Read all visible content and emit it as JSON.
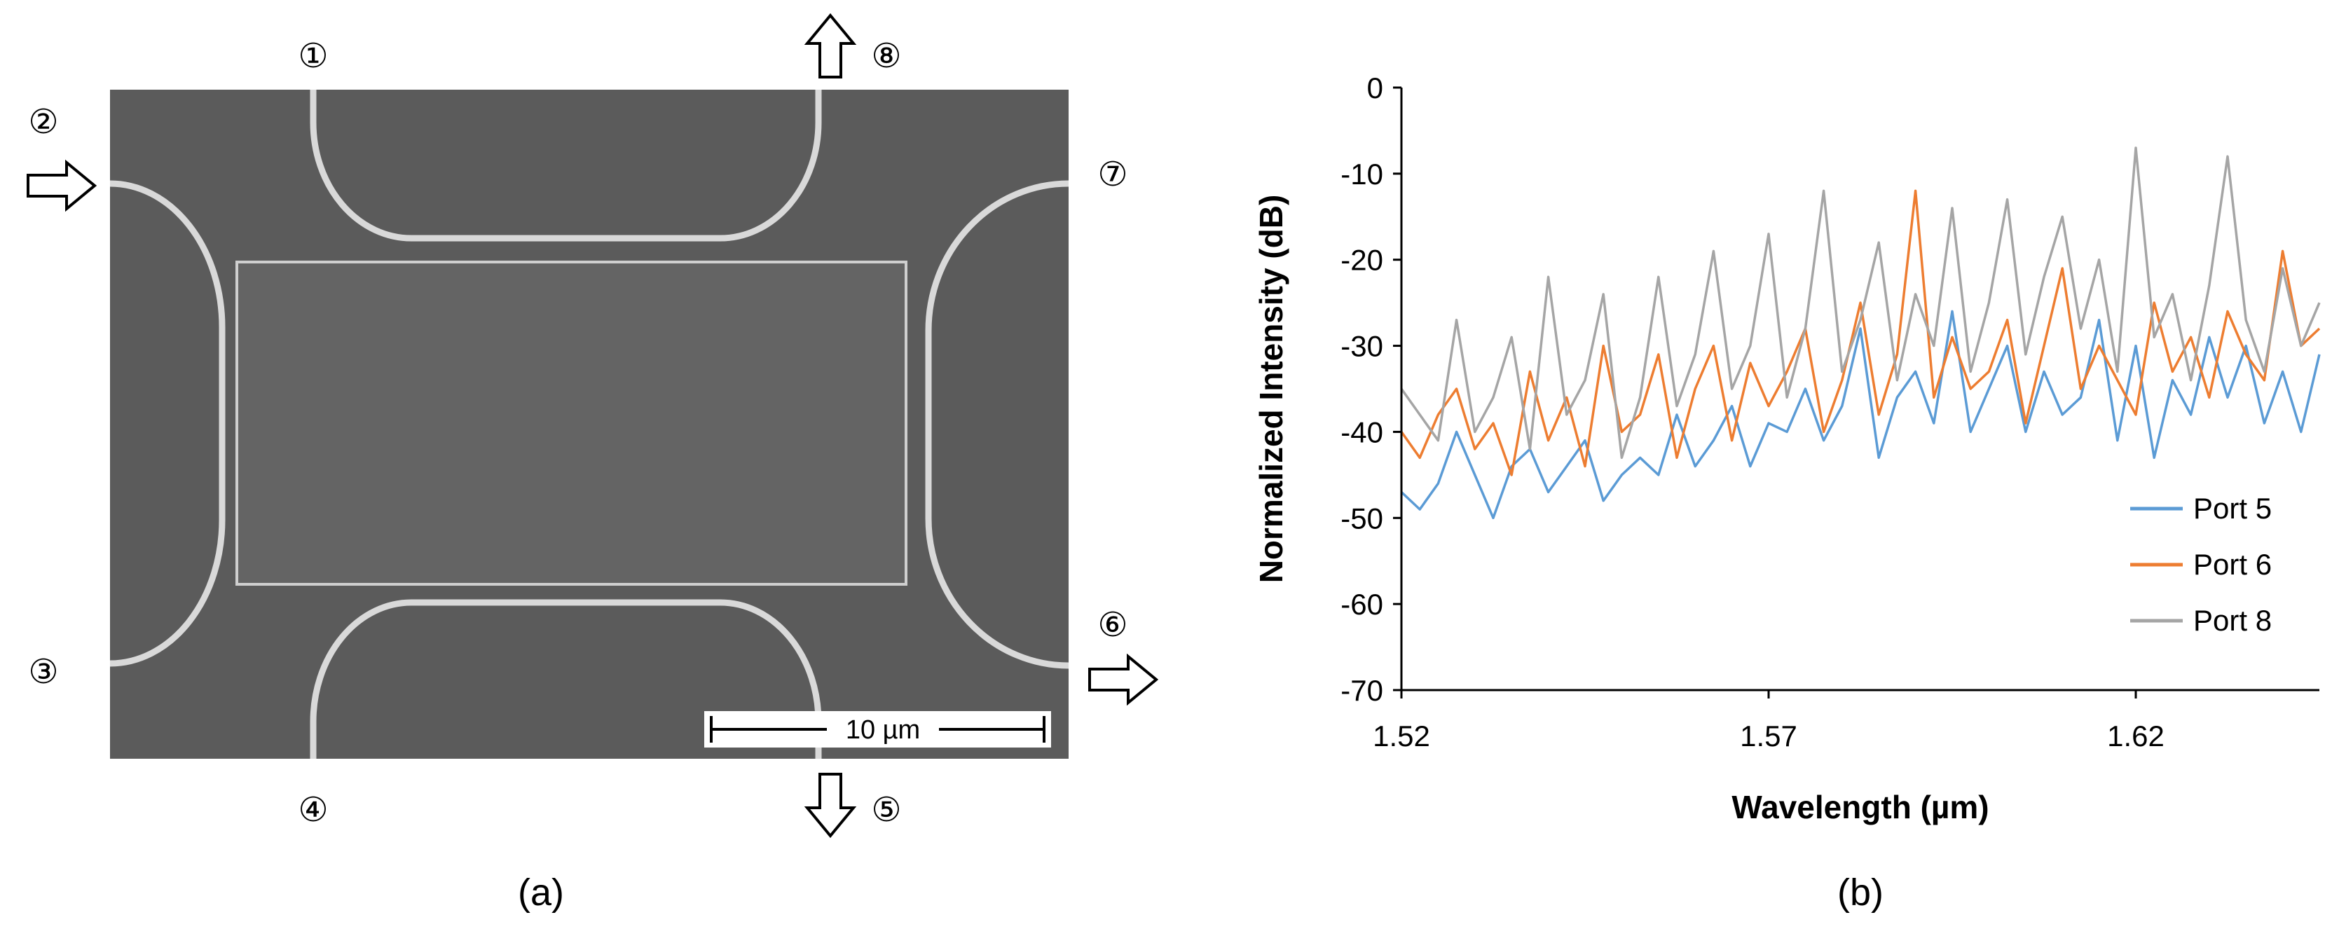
{
  "panel_a": {
    "caption": "(a)",
    "scale_bar_label": "10 µm",
    "ports": [
      {
        "label": "①",
        "arrow": "none"
      },
      {
        "label": "②",
        "arrow": "in-right"
      },
      {
        "label": "③",
        "arrow": "none"
      },
      {
        "label": "④",
        "arrow": "none"
      },
      {
        "label": "⑤",
        "arrow": "out-down"
      },
      {
        "label": "⑥",
        "arrow": "out-right"
      },
      {
        "label": "⑦",
        "arrow": "none"
      },
      {
        "label": "⑧",
        "arrow": "out-up"
      }
    ],
    "colors": {
      "background": "#5b5b5b",
      "waveguide": "#d9d9d9"
    }
  },
  "panel_b": {
    "caption": "(b)"
  },
  "chart_data": {
    "type": "line",
    "title": "",
    "xlabel": "Wavelength (µm)",
    "ylabel": "Normalized Intensity (dB)",
    "xlim": [
      1.52,
      1.645
    ],
    "ylim": [
      -70,
      0
    ],
    "xticks": [
      "1.52",
      "1.57",
      "1.62"
    ],
    "xtick_values": [
      1.52,
      1.57,
      1.62
    ],
    "yticks": [
      "0",
      "-10",
      "-20",
      "-30",
      "-40",
      "-50",
      "-60",
      "-70"
    ],
    "ytick_values": [
      0,
      -10,
      -20,
      -30,
      -40,
      -50,
      -60,
      -70
    ],
    "grid": false,
    "legend_position": "bottom-right",
    "series": [
      {
        "name": "Port 5",
        "color": "#5b9bd5",
        "x": [
          1.52,
          1.5225,
          1.525,
          1.5275,
          1.53,
          1.5325,
          1.535,
          1.5375,
          1.54,
          1.5425,
          1.545,
          1.5475,
          1.55,
          1.5525,
          1.555,
          1.5575,
          1.56,
          1.5625,
          1.565,
          1.5675,
          1.57,
          1.5725,
          1.575,
          1.5775,
          1.58,
          1.5825,
          1.585,
          1.5875,
          1.59,
          1.5925,
          1.595,
          1.5975,
          1.6,
          1.6025,
          1.605,
          1.6075,
          1.61,
          1.6125,
          1.615,
          1.6175,
          1.62,
          1.6225,
          1.625,
          1.6275,
          1.63,
          1.6325,
          1.635,
          1.6375,
          1.64,
          1.6425,
          1.645
        ],
        "y": [
          -47,
          -49,
          -46,
          -40,
          -45,
          -50,
          -44,
          -42,
          -47,
          -44,
          -41,
          -48,
          -45,
          -43,
          -45,
          -38,
          -44,
          -41,
          -37,
          -44,
          -39,
          -40,
          -35,
          -41,
          -37,
          -28,
          -43,
          -36,
          -33,
          -39,
          -26,
          -40,
          -35,
          -30,
          -40,
          -33,
          -38,
          -36,
          -27,
          -41,
          -30,
          -43,
          -34,
          -38,
          -29,
          -36,
          -30,
          -39,
          -33,
          -40,
          -31
        ]
      },
      {
        "name": "Port 6",
        "color": "#ed7d31",
        "x": [
          1.52,
          1.5225,
          1.525,
          1.5275,
          1.53,
          1.5325,
          1.535,
          1.5375,
          1.54,
          1.5425,
          1.545,
          1.5475,
          1.55,
          1.5525,
          1.555,
          1.5575,
          1.56,
          1.5625,
          1.565,
          1.5675,
          1.57,
          1.5725,
          1.575,
          1.5775,
          1.58,
          1.5825,
          1.585,
          1.5875,
          1.59,
          1.5925,
          1.595,
          1.5975,
          1.6,
          1.6025,
          1.605,
          1.6075,
          1.61,
          1.6125,
          1.615,
          1.6175,
          1.62,
          1.6225,
          1.625,
          1.6275,
          1.63,
          1.6325,
          1.635,
          1.6375,
          1.64,
          1.6425,
          1.645
        ],
        "y": [
          -40,
          -43,
          -38,
          -35,
          -42,
          -39,
          -45,
          -33,
          -41,
          -36,
          -44,
          -30,
          -40,
          -38,
          -31,
          -43,
          -35,
          -30,
          -41,
          -32,
          -37,
          -33,
          -28,
          -40,
          -34,
          -25,
          -38,
          -31,
          -12,
          -36,
          -29,
          -35,
          -33,
          -27,
          -39,
          -30,
          -21,
          -35,
          -30,
          -34,
          -38,
          -25,
          -33,
          -29,
          -36,
          -26,
          -31,
          -34,
          -19,
          -30,
          -28
        ]
      },
      {
        "name": "Port 8",
        "color": "#a5a5a5",
        "x": [
          1.52,
          1.5225,
          1.525,
          1.5275,
          1.53,
          1.5325,
          1.535,
          1.5375,
          1.54,
          1.5425,
          1.545,
          1.5475,
          1.55,
          1.5525,
          1.555,
          1.5575,
          1.56,
          1.5625,
          1.565,
          1.5675,
          1.57,
          1.5725,
          1.575,
          1.5775,
          1.58,
          1.5825,
          1.585,
          1.5875,
          1.59,
          1.5925,
          1.595,
          1.5975,
          1.6,
          1.6025,
          1.605,
          1.6075,
          1.61,
          1.6125,
          1.615,
          1.6175,
          1.62,
          1.6225,
          1.625,
          1.6275,
          1.63,
          1.6325,
          1.635,
          1.6375,
          1.64,
          1.6425,
          1.645
        ],
        "y": [
          -35,
          -38,
          -41,
          -27,
          -40,
          -36,
          -29,
          -42,
          -22,
          -38,
          -34,
          -24,
          -43,
          -36,
          -22,
          -37,
          -31,
          -19,
          -35,
          -30,
          -17,
          -36,
          -28,
          -12,
          -33,
          -27,
          -18,
          -34,
          -24,
          -30,
          -14,
          -33,
          -25,
          -13,
          -31,
          -22,
          -15,
          -28,
          -20,
          -33,
          -7,
          -29,
          -24,
          -34,
          -23,
          -8,
          -27,
          -33,
          -21,
          -30,
          -25
        ]
      }
    ]
  }
}
